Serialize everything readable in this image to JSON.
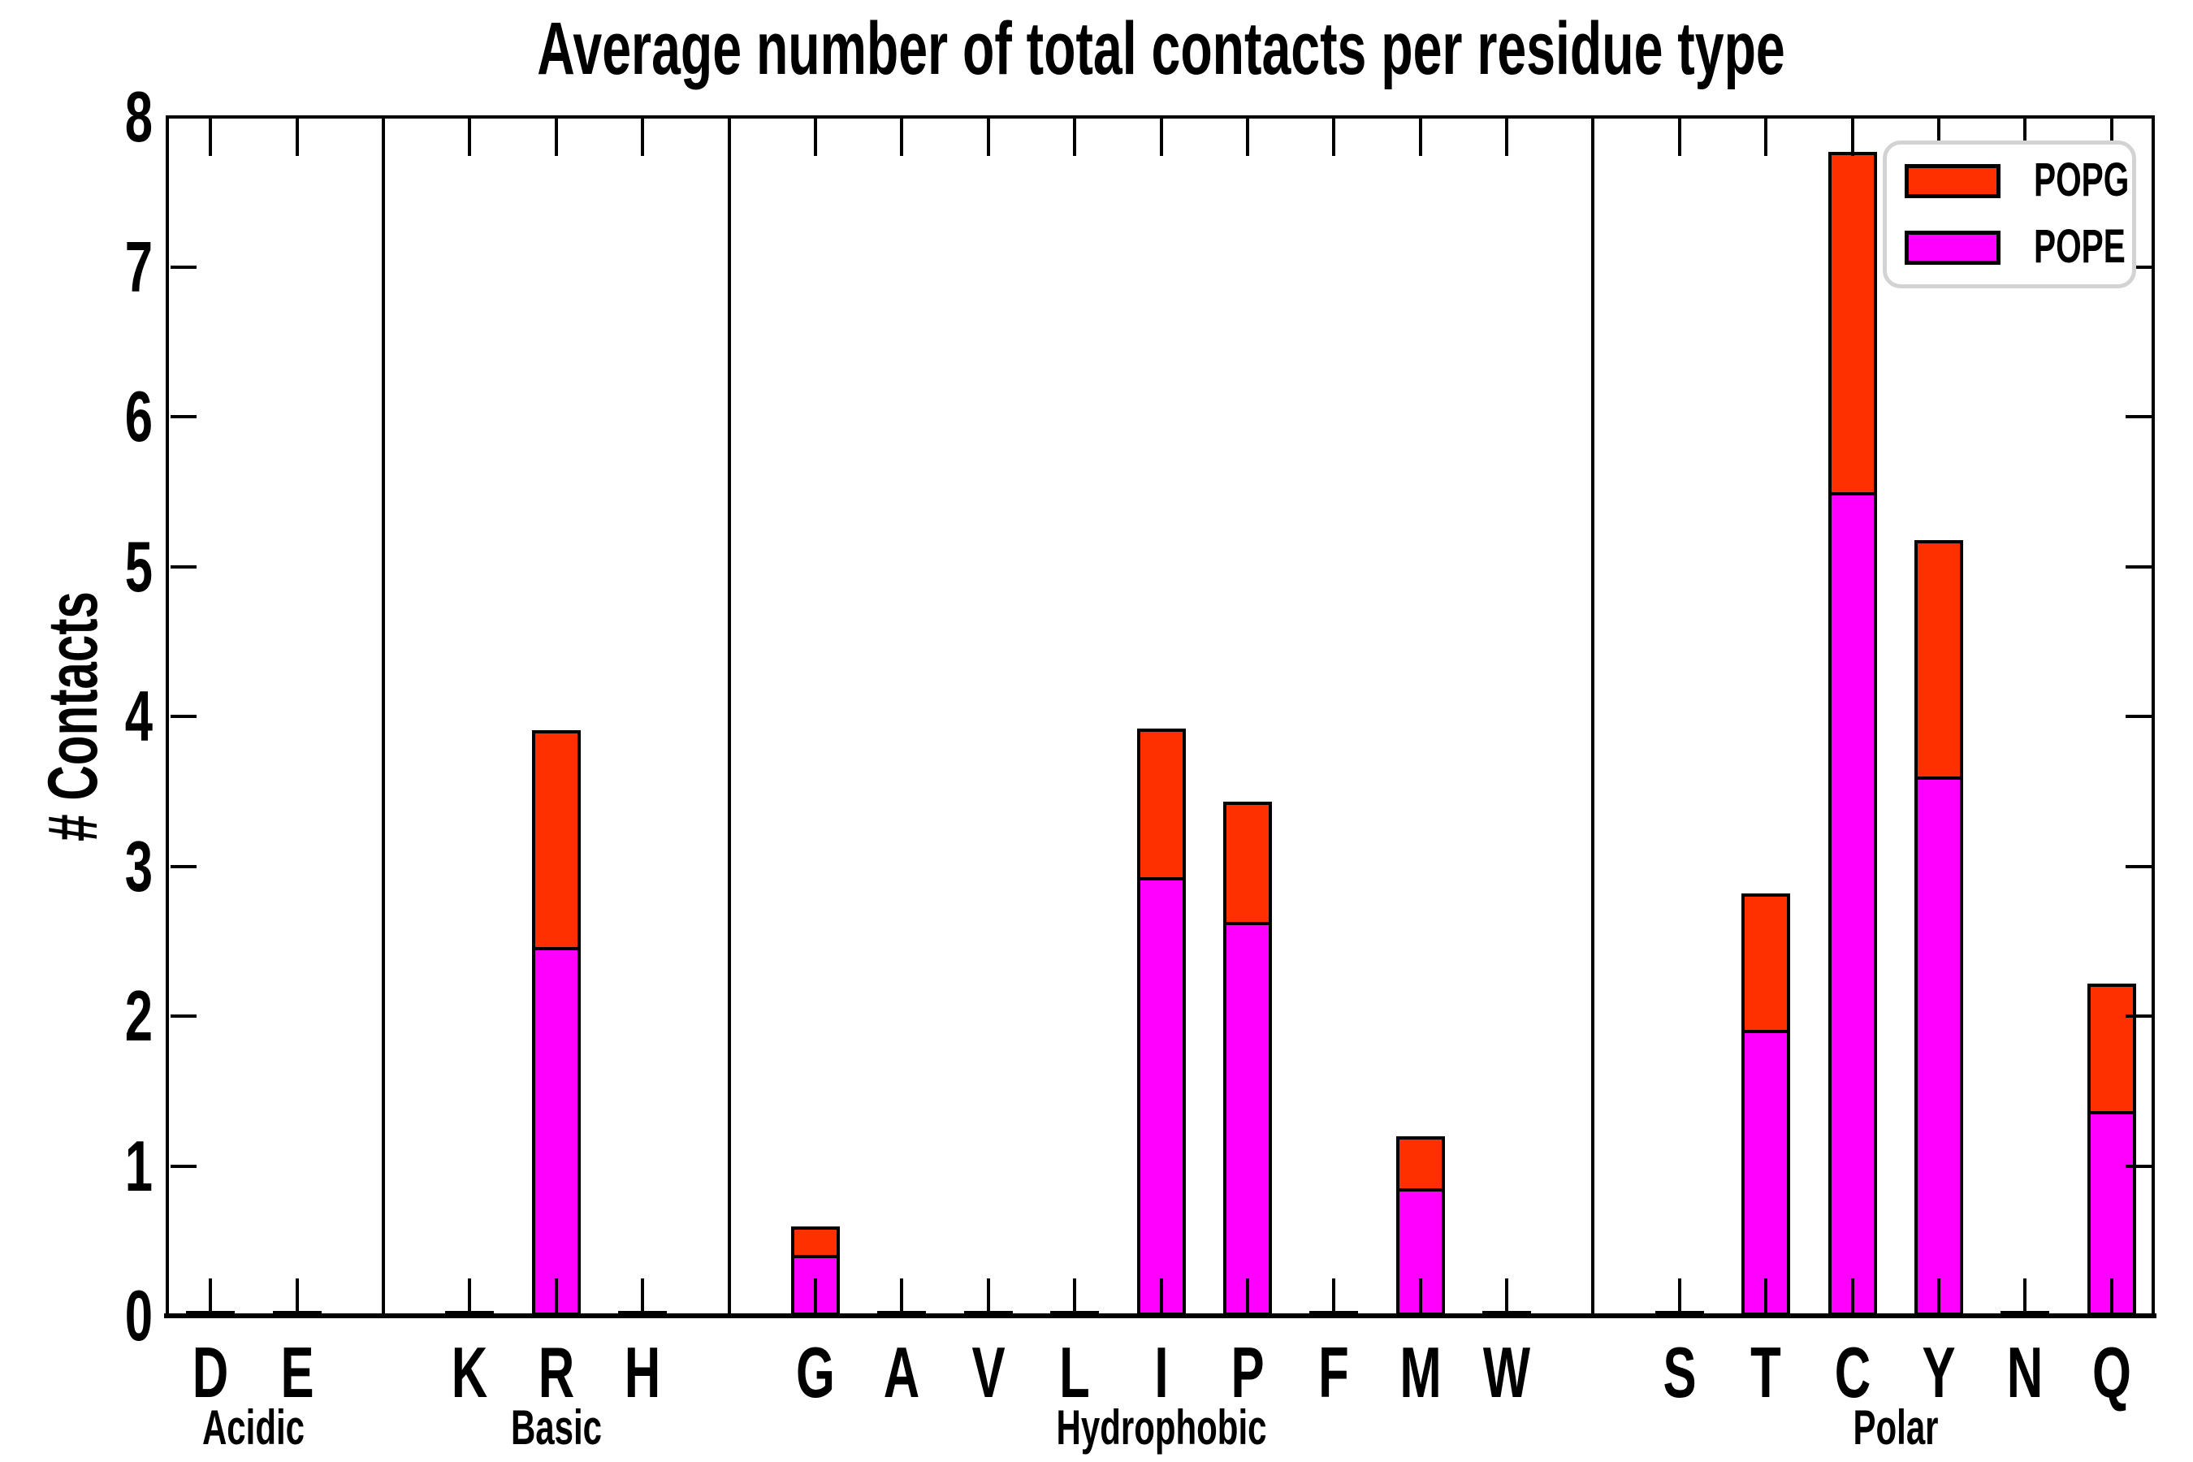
{
  "title": "Average number of total contacts per residue type",
  "axes": {
    "ylabel": "# Contacts",
    "ytick_labels": [
      "0",
      "1",
      "2",
      "3",
      "4",
      "5",
      "6",
      "7",
      "8"
    ]
  },
  "legend": {
    "position": "upper right",
    "entries": [
      {
        "label": "POPG",
        "color": "#ff3000"
      },
      {
        "label": "POPE",
        "color": "#ff00ff"
      }
    ]
  },
  "colors": {
    "popg": "#ff3000",
    "pope": "#ff00ff",
    "bar_edge": "#000000",
    "legend_border": "#d3d3d3"
  },
  "chart_data": {
    "type": "bar",
    "stacked": true,
    "title": "Average number of total contacts per residue type",
    "xlabel": "",
    "ylabel": "# Contacts",
    "ylim": [
      0,
      8
    ],
    "yticks": [
      0,
      1,
      2,
      3,
      4,
      5,
      6,
      7,
      8
    ],
    "grid": false,
    "legend_position": "upper right",
    "groups": [
      {
        "label": "Acidic",
        "categories": [
          "D",
          "E"
        ]
      },
      {
        "label": "Basic",
        "categories": [
          "K",
          "R",
          "H"
        ]
      },
      {
        "label": "Hydrophobic",
        "categories": [
          "G",
          "A",
          "V",
          "L",
          "I",
          "P",
          "F",
          "M",
          "W"
        ]
      },
      {
        "label": "Polar",
        "categories": [
          "S",
          "T",
          "C",
          "Y",
          "N",
          "Q"
        ]
      }
    ],
    "categories": [
      "D",
      "E",
      "K",
      "R",
      "H",
      "G",
      "A",
      "V",
      "L",
      "I",
      "P",
      "F",
      "M",
      "W",
      "S",
      "T",
      "C",
      "Y",
      "N",
      "Q"
    ],
    "series": [
      {
        "name": "POPE",
        "color": "#ff00ff",
        "values": [
          0.01,
          0.01,
          0.01,
          2.48,
          0.01,
          0.43,
          0.01,
          0.01,
          0.01,
          2.95,
          2.65,
          0.01,
          0.87,
          0.01,
          0.02,
          1.93,
          5.52,
          3.62,
          0.02,
          1.39
        ]
      },
      {
        "name": "POPG",
        "color": "#ff3000",
        "values": [
          0.01,
          0.01,
          0.01,
          1.45,
          0.01,
          0.19,
          0.01,
          0.01,
          0.01,
          0.99,
          0.8,
          0.01,
          0.35,
          0.01,
          0.01,
          0.91,
          2.27,
          1.58,
          0.01,
          0.85
        ]
      }
    ]
  }
}
